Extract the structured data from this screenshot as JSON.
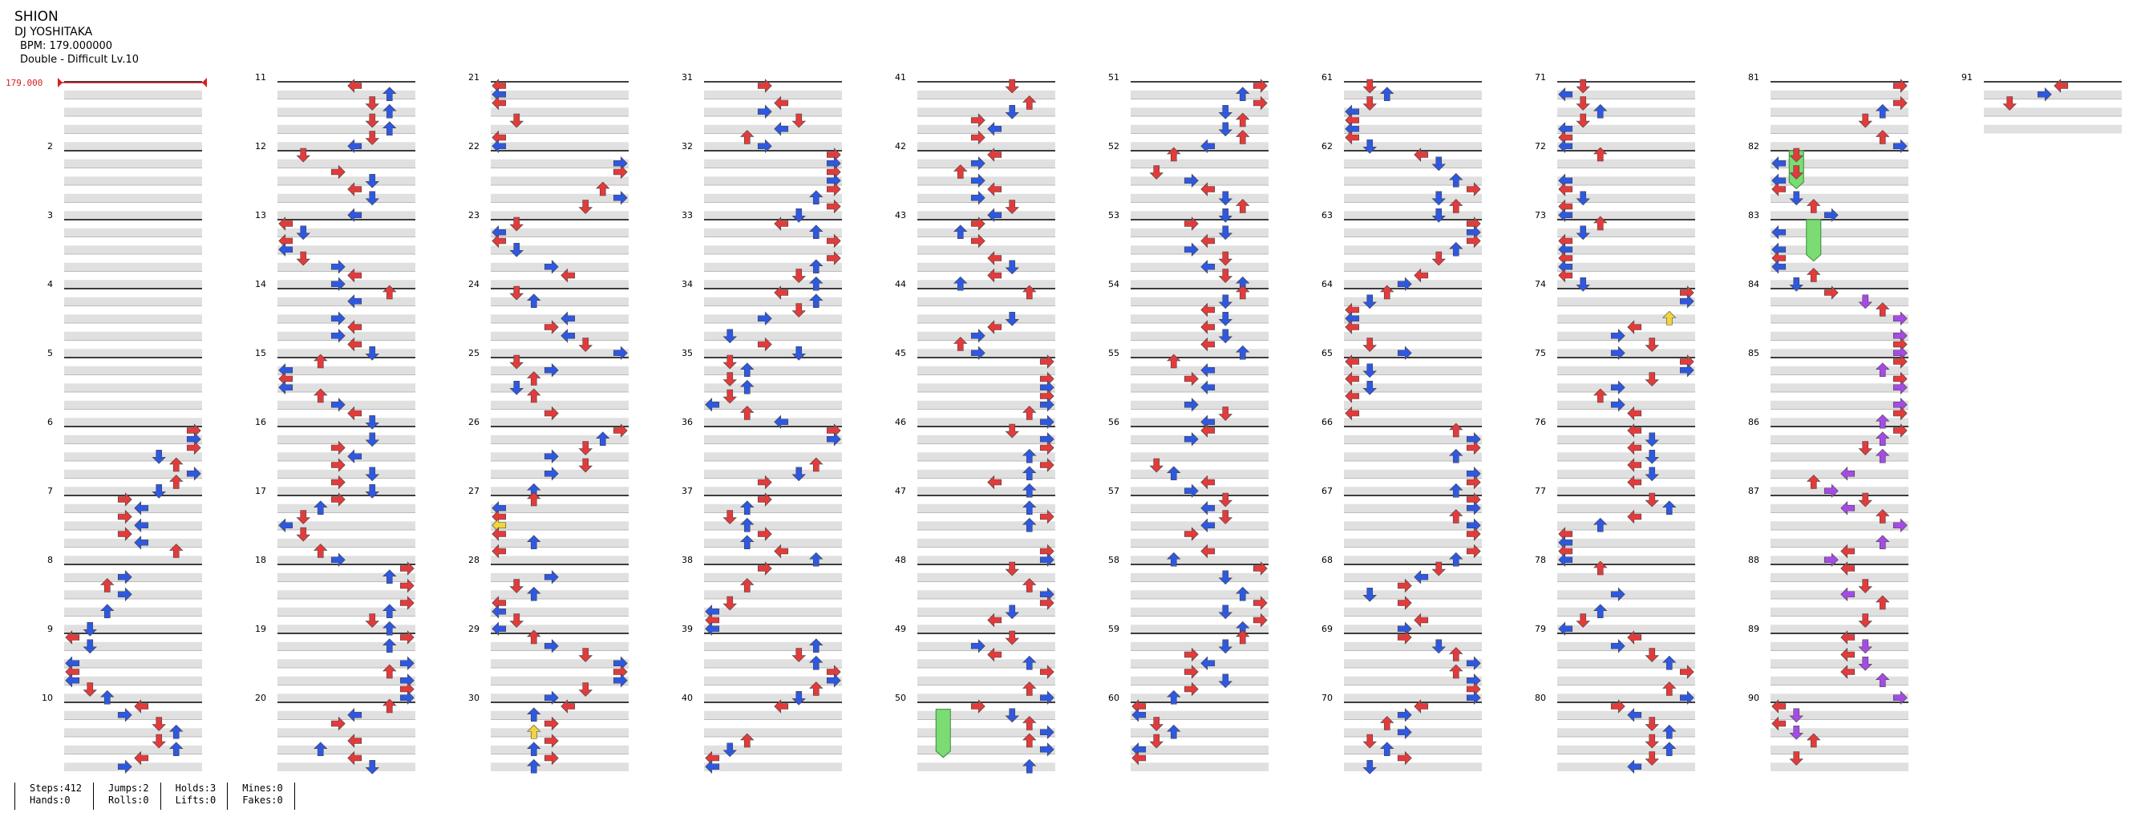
{
  "song": {
    "title": "SHION",
    "artist": "DJ YOSHITAKA",
    "bpm_text": "BPM: 179.000000",
    "difficulty_text": "Double - Difficult Lv.10",
    "bpm_marker": "179.000"
  },
  "measure_labels": [
    "",
    "2",
    "3",
    "4",
    "5",
    "6",
    "7",
    "8",
    "9",
    "10",
    "11",
    "12",
    "13",
    "14",
    "15",
    "16",
    "17",
    "18",
    "19",
    "20",
    "21",
    "22",
    "23",
    "24",
    "25",
    "26",
    "27",
    "28",
    "29",
    "30",
    "31",
    "32",
    "33",
    "34",
    "35",
    "36",
    "37",
    "38",
    "39",
    "40",
    "41",
    "42",
    "43",
    "44",
    "45",
    "46",
    "47",
    "48",
    "49",
    "50",
    "51",
    "52",
    "53",
    "54",
    "55",
    "56",
    "57",
    "58",
    "59",
    "60",
    "61",
    "62",
    "63",
    "64",
    "65",
    "66",
    "67",
    "68",
    "69",
    "70",
    "71",
    "72",
    "73",
    "74",
    "75",
    "76",
    "77",
    "78",
    "79",
    "80",
    "81",
    "82",
    "83",
    "84",
    "85",
    "86",
    "87",
    "88",
    "89",
    "90",
    "91"
  ],
  "colors": {
    "red_note": "#e33b3b",
    "blue_note": "#2f58e0",
    "yellow_note": "#f1d53a",
    "purple_note": "#a64ae6",
    "hold_body": "#7bdc74",
    "stripe": "#e0e0e0",
    "bpm": "#d62020"
  },
  "stats": {
    "steps": "Steps:412",
    "hands": "Hands:0",
    "jumps": "Jumps:2",
    "rolls": "Rolls:0",
    "holds": "Holds:3",
    "lifts": "Lifts:0",
    "mines": "Mines:0",
    "fakes": "Fakes:0"
  }
}
